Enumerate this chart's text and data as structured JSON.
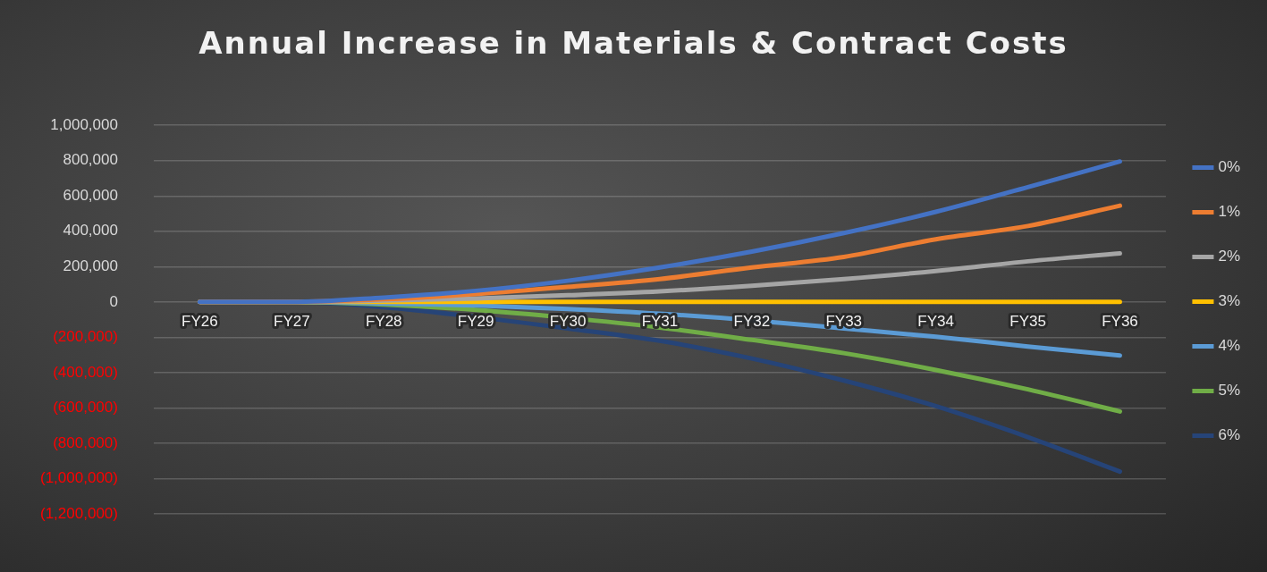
{
  "chart_data": {
    "type": "line",
    "title": "Annual Increase in Materials & Contract Costs",
    "categories": [
      "FY26",
      "FY27",
      "FY28",
      "FY29",
      "FY30",
      "FY31",
      "FY32",
      "FY33",
      "FY34",
      "FY35",
      "FY36"
    ],
    "series": [
      {
        "name": "0%",
        "color": "#4472c4",
        "values": [
          0,
          0,
          25000,
          63000,
          120000,
          195000,
          285000,
          390000,
          510000,
          650000,
          795000
        ]
      },
      {
        "name": "1%",
        "color": "#ed7d31",
        "values": [
          0,
          0,
          15000,
          45000,
          85000,
          130000,
          195000,
          255000,
          355000,
          430000,
          545000
        ]
      },
      {
        "name": "2%",
        "color": "#a5a5a5",
        "values": [
          0,
          0,
          8000,
          20000,
          38000,
          60000,
          92000,
          130000,
          175000,
          230000,
          275000
        ]
      },
      {
        "name": "3%",
        "color": "#ffc000",
        "values": [
          0,
          0,
          0,
          0,
          0,
          0,
          0,
          0,
          0,
          0,
          0
        ]
      },
      {
        "name": "4%",
        "color": "#5b9bd5",
        "values": [
          0,
          0,
          -8000,
          -20000,
          -40000,
          -67000,
          -104000,
          -150000,
          -197000,
          -252000,
          -303000
        ]
      },
      {
        "name": "5%",
        "color": "#70ad47",
        "values": [
          0,
          0,
          -15000,
          -45000,
          -90000,
          -145000,
          -215000,
          -290000,
          -385000,
          -495000,
          -620000
        ]
      },
      {
        "name": "6%",
        "color": "#264478",
        "values": [
          0,
          0,
          -30000,
          -85000,
          -150000,
          -220000,
          -320000,
          -445000,
          -590000,
          -765000,
          -960000
        ]
      }
    ],
    "ylim": [
      -1200000,
      1000000
    ],
    "yticks": [
      {
        "value": -1200000,
        "label": "(1,200,000)"
      },
      {
        "value": -1000000,
        "label": "(1,000,000)"
      },
      {
        "value": -800000,
        "label": "(800,000)"
      },
      {
        "value": -600000,
        "label": "(600,000)"
      },
      {
        "value": -400000,
        "label": "(400,000)"
      },
      {
        "value": -200000,
        "label": "(200,000)"
      },
      {
        "value": 0,
        "label": "0"
      },
      {
        "value": 200000,
        "label": "200,000"
      },
      {
        "value": 400000,
        "label": "400,000"
      },
      {
        "value": 600000,
        "label": "600,000"
      },
      {
        "value": 800000,
        "label": "800,000"
      },
      {
        "value": 1000000,
        "label": "1,000,000"
      }
    ],
    "grid": "y",
    "legend": "right",
    "marker": "none",
    "line_style": "solid"
  }
}
